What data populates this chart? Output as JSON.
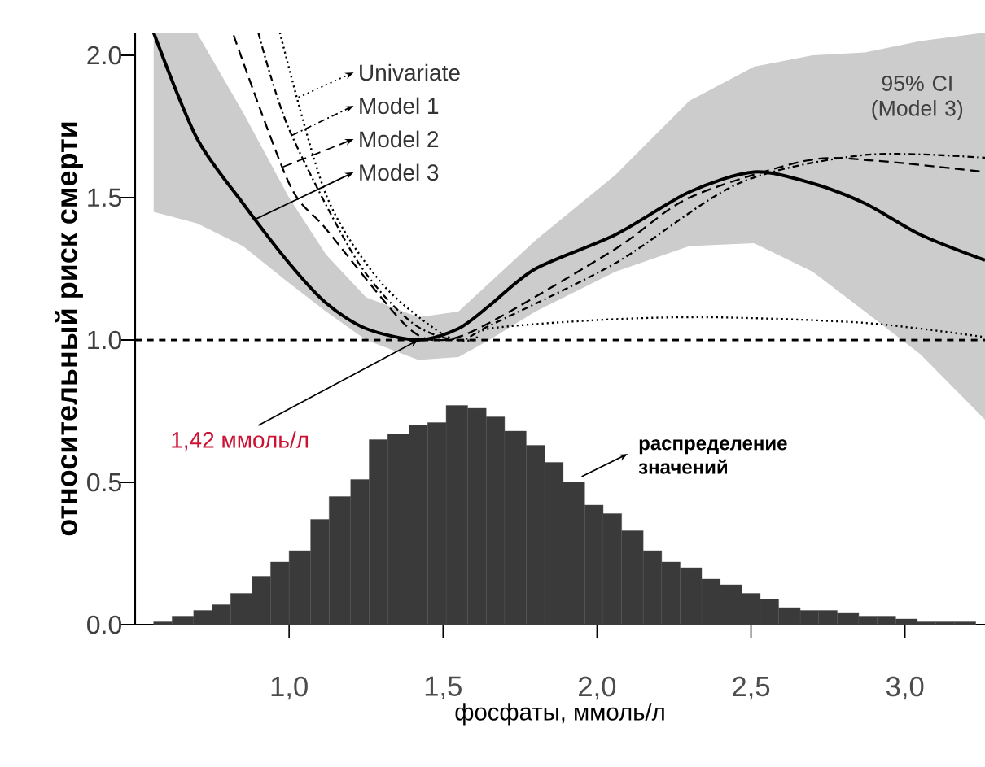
{
  "chart_data": {
    "type": "line",
    "xlabel": "фосфаты, ммоль/л",
    "ylabel": "относительный риск смерти",
    "xlim": [
      0.5,
      3.26
    ],
    "ylim": [
      0,
      2.08
    ],
    "xticks": [
      {
        "value": 1.0,
        "label": "1,0"
      },
      {
        "value": 1.5,
        "label": "1,5"
      },
      {
        "value": 2.0,
        "label": "2,0"
      },
      {
        "value": 2.5,
        "label": "2,5"
      },
      {
        "value": 3.0,
        "label": "3,0"
      }
    ],
    "yticks": [
      {
        "value": 0.0,
        "label": "0.0"
      },
      {
        "value": 0.5,
        "label": "0.5"
      },
      {
        "value": 1.0,
        "label": "1.0"
      },
      {
        "value": 1.5,
        "label": "1.5"
      },
      {
        "value": 2.0,
        "label": "2.0"
      }
    ],
    "legend": "top left",
    "ref_lines": [
      {
        "axis": "y",
        "value": 1.0,
        "label": null,
        "color": "#000000",
        "line_style": "dashed"
      }
    ],
    "annotations": [
      "95% CI (Model 3)",
      {
        "text": "1,42 ммоль/л",
        "x": 1.42,
        "y": 1.0
      },
      "распределение значений"
    ],
    "series": [
      {
        "name": "Univariate",
        "color": "#000000",
        "line_style": "dotted",
        "x": [
          0.97,
          1.12,
          1.3,
          1.5,
          1.6,
          1.65,
          2.0,
          2.36,
          2.87,
          3.26
        ],
        "values": [
          2.08,
          1.51,
          1.2,
          1.02,
          1.0,
          1.04,
          1.07,
          1.08,
          1.06,
          1.01
        ]
      },
      {
        "name": "Model 1",
        "color": "#000000",
        "line_style": "dashdot",
        "x": [
          0.9,
          1.0,
          1.22,
          1.4,
          1.55,
          1.65,
          2.06,
          2.46,
          2.87,
          3.26
        ],
        "values": [
          2.08,
          1.74,
          1.28,
          1.06,
          1.0,
          1.05,
          1.27,
          1.55,
          1.65,
          1.64
        ]
      },
      {
        "name": "Model 2",
        "color": "#000000",
        "line_style": "dashed",
        "x": [
          0.82,
          1.0,
          1.12,
          1.38,
          1.5,
          1.65,
          2.06,
          2.3,
          2.68,
          2.9,
          3.26
        ],
        "values": [
          2.07,
          1.55,
          1.39,
          1.05,
          1.0,
          1.06,
          1.32,
          1.5,
          1.63,
          1.63,
          1.59
        ]
      },
      {
        "name": "Model 3",
        "color": "#000000",
        "line_style": "solid",
        "x": [
          0.56,
          0.7,
          0.85,
          1.0,
          1.12,
          1.25,
          1.42,
          1.55,
          1.65,
          1.8,
          2.06,
          2.3,
          2.51,
          2.7,
          2.87,
          3.05,
          3.26
        ],
        "values": [
          2.08,
          1.71,
          1.48,
          1.27,
          1.13,
          1.04,
          1.0,
          1.04,
          1.12,
          1.25,
          1.37,
          1.52,
          1.59,
          1.55,
          1.48,
          1.37,
          1.28
        ],
        "lower": [
          1.45,
          1.41,
          1.33,
          1.2,
          1.1,
          1.0,
          0.93,
          0.94,
          1.0,
          1.1,
          1.24,
          1.33,
          1.34,
          1.24,
          1.1,
          0.95,
          0.72
        ],
        "upper": [
          2.08,
          2.08,
          1.8,
          1.5,
          1.3,
          1.15,
          1.08,
          1.1,
          1.2,
          1.35,
          1.58,
          1.84,
          1.96,
          2.0,
          2.01,
          2.05,
          2.08
        ]
      },
      {
        "type": "histogram",
        "color": "#3a3a3a",
        "bins": [
          0.56,
          0.62,
          0.69,
          0.75,
          0.81,
          0.88,
          0.94,
          1.0,
          1.07,
          1.13,
          1.2,
          1.26,
          1.32,
          1.39,
          1.45,
          1.51,
          1.58,
          1.64,
          1.7,
          1.77,
          1.83,
          1.89,
          1.96,
          2.02,
          2.08,
          2.15,
          2.21,
          2.27,
          2.34,
          2.4,
          2.47,
          2.53,
          2.59,
          2.66,
          2.72,
          2.78,
          2.85,
          2.91,
          2.97,
          3.04,
          3.1,
          3.16,
          3.23
        ],
        "values": [
          0.01,
          0.03,
          0.05,
          0.07,
          0.11,
          0.17,
          0.22,
          0.26,
          0.37,
          0.45,
          0.51,
          0.65,
          0.67,
          0.7,
          0.71,
          0.77,
          0.76,
          0.73,
          0.68,
          0.63,
          0.57,
          0.5,
          0.42,
          0.39,
          0.33,
          0.26,
          0.22,
          0.2,
          0.16,
          0.14,
          0.11,
          0.09,
          0.06,
          0.05,
          0.05,
          0.04,
          0.03,
          0.03,
          0.02,
          0.01,
          0.01,
          0.01
        ]
      }
    ]
  }
}
